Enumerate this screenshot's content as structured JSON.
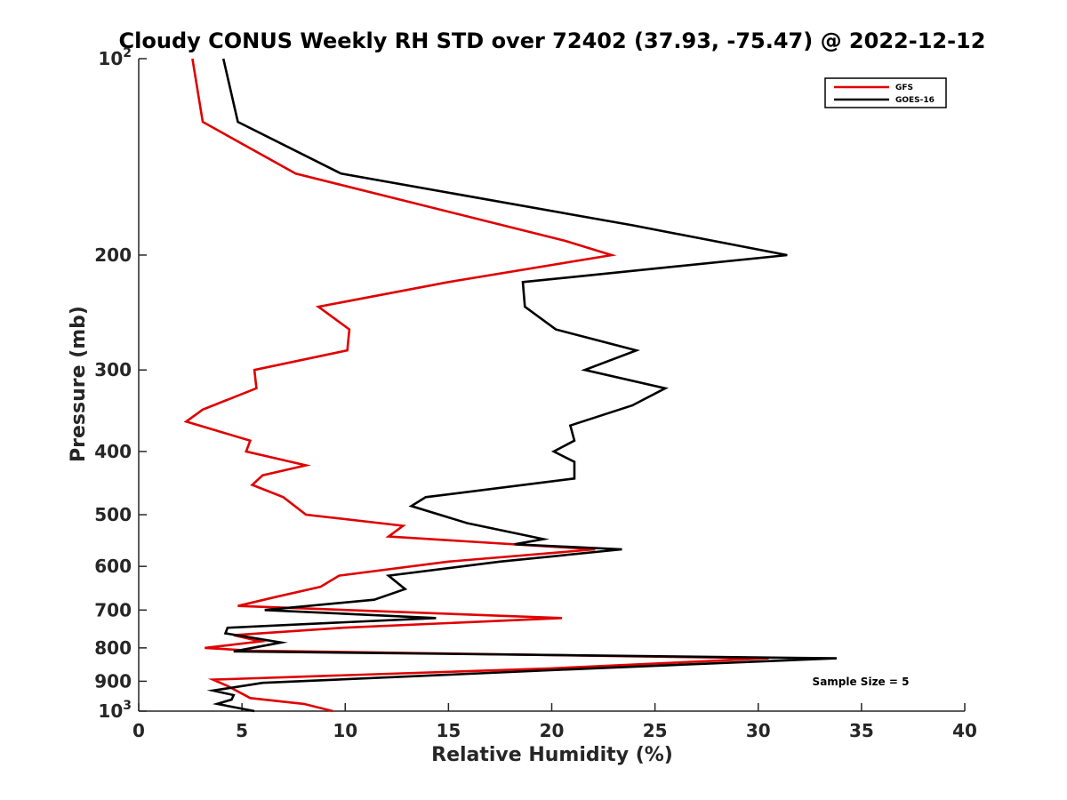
{
  "chart_data": {
    "type": "line",
    "title": "Cloudy CONUS Weekly RH STD over 72402 (37.93, -75.47) @ 2022-12-12",
    "xlabel": "Relative Humidity (%)",
    "ylabel": "Pressure (mb)",
    "xlim": [
      0,
      40
    ],
    "ylim": [
      100,
      1000
    ],
    "y_scale": "log",
    "y_reversed": true,
    "x_ticks": [
      0,
      5,
      10,
      15,
      20,
      25,
      30,
      35,
      40
    ],
    "x_tick_labels": [
      "0",
      "5",
      "10",
      "15",
      "20",
      "25",
      "30",
      "35",
      "40"
    ],
    "y_ticks": [
      100,
      200,
      300,
      400,
      500,
      600,
      700,
      800,
      900,
      1000
    ],
    "y_tick_labels": [
      {
        "base": "10",
        "exp": "2"
      },
      {
        "base": "200",
        "exp": ""
      },
      {
        "base": "300",
        "exp": ""
      },
      {
        "base": "400",
        "exp": ""
      },
      {
        "base": "500",
        "exp": ""
      },
      {
        "base": "600",
        "exp": ""
      },
      {
        "base": "700",
        "exp": ""
      },
      {
        "base": "800",
        "exp": ""
      },
      {
        "base": "900",
        "exp": ""
      },
      {
        "base": "10",
        "exp": "3"
      }
    ],
    "grid": false,
    "legend_position": "top-right",
    "annotation": "Sample Size = 5",
    "series": [
      {
        "name": "GFS",
        "color": "#e00000",
        "points": [
          [
            2.6,
            100
          ],
          [
            3.1,
            125
          ],
          [
            7.6,
            150
          ],
          [
            20.6,
            190
          ],
          [
            22.9,
            200
          ],
          [
            15.0,
            220
          ],
          [
            8.7,
            240
          ],
          [
            10.2,
            260
          ],
          [
            10.1,
            280
          ],
          [
            5.6,
            300
          ],
          [
            5.7,
            320
          ],
          [
            3.1,
            345
          ],
          [
            2.3,
            360
          ],
          [
            5.4,
            385
          ],
          [
            5.2,
            400
          ],
          [
            8.1,
            420
          ],
          [
            6.0,
            435
          ],
          [
            5.5,
            450
          ],
          [
            7.0,
            470
          ],
          [
            8.1,
            500
          ],
          [
            12.8,
            520
          ],
          [
            12.1,
            540
          ],
          [
            22.1,
            565
          ],
          [
            15.0,
            590
          ],
          [
            9.7,
            620
          ],
          [
            8.8,
            645
          ],
          [
            6.5,
            670
          ],
          [
            4.8,
            690
          ],
          [
            20.5,
            720
          ],
          [
            9.9,
            745
          ],
          [
            4.6,
            765
          ],
          [
            5.9,
            782
          ],
          [
            3.2,
            800
          ],
          [
            5.5,
            808
          ],
          [
            30.5,
            830
          ],
          [
            20.0,
            860
          ],
          [
            3.6,
            895
          ],
          [
            4.3,
            915
          ],
          [
            5.0,
            940
          ],
          [
            5.4,
            955
          ],
          [
            8.0,
            975
          ],
          [
            9.4,
            1000
          ]
        ]
      },
      {
        "name": "GOES-16",
        "color": "#000000",
        "points": [
          [
            4.1,
            100
          ],
          [
            4.8,
            125
          ],
          [
            9.8,
            150
          ],
          [
            23.9,
            180
          ],
          [
            31.4,
            200
          ],
          [
            18.6,
            220
          ],
          [
            18.7,
            240
          ],
          [
            20.2,
            260
          ],
          [
            24.1,
            280
          ],
          [
            21.6,
            300
          ],
          [
            25.5,
            320
          ],
          [
            23.9,
            340
          ],
          [
            20.9,
            365
          ],
          [
            21.1,
            385
          ],
          [
            20.1,
            400
          ],
          [
            21.1,
            415
          ],
          [
            21.1,
            440
          ],
          [
            13.9,
            470
          ],
          [
            13.2,
            485
          ],
          [
            15.9,
            515
          ],
          [
            19.6,
            545
          ],
          [
            18.2,
            555
          ],
          [
            23.4,
            565
          ],
          [
            17.5,
            590
          ],
          [
            12.1,
            620
          ],
          [
            12.9,
            650
          ],
          [
            11.4,
            675
          ],
          [
            6.1,
            700
          ],
          [
            14.4,
            720
          ],
          [
            4.3,
            745
          ],
          [
            4.2,
            760
          ],
          [
            6.9,
            785
          ],
          [
            4.6,
            810
          ],
          [
            33.8,
            830
          ],
          [
            22.0,
            860
          ],
          [
            6.0,
            905
          ],
          [
            3.6,
            930
          ],
          [
            4.6,
            945
          ],
          [
            4.5,
            960
          ],
          [
            3.8,
            975
          ],
          [
            5.6,
            1000
          ]
        ]
      }
    ]
  }
}
